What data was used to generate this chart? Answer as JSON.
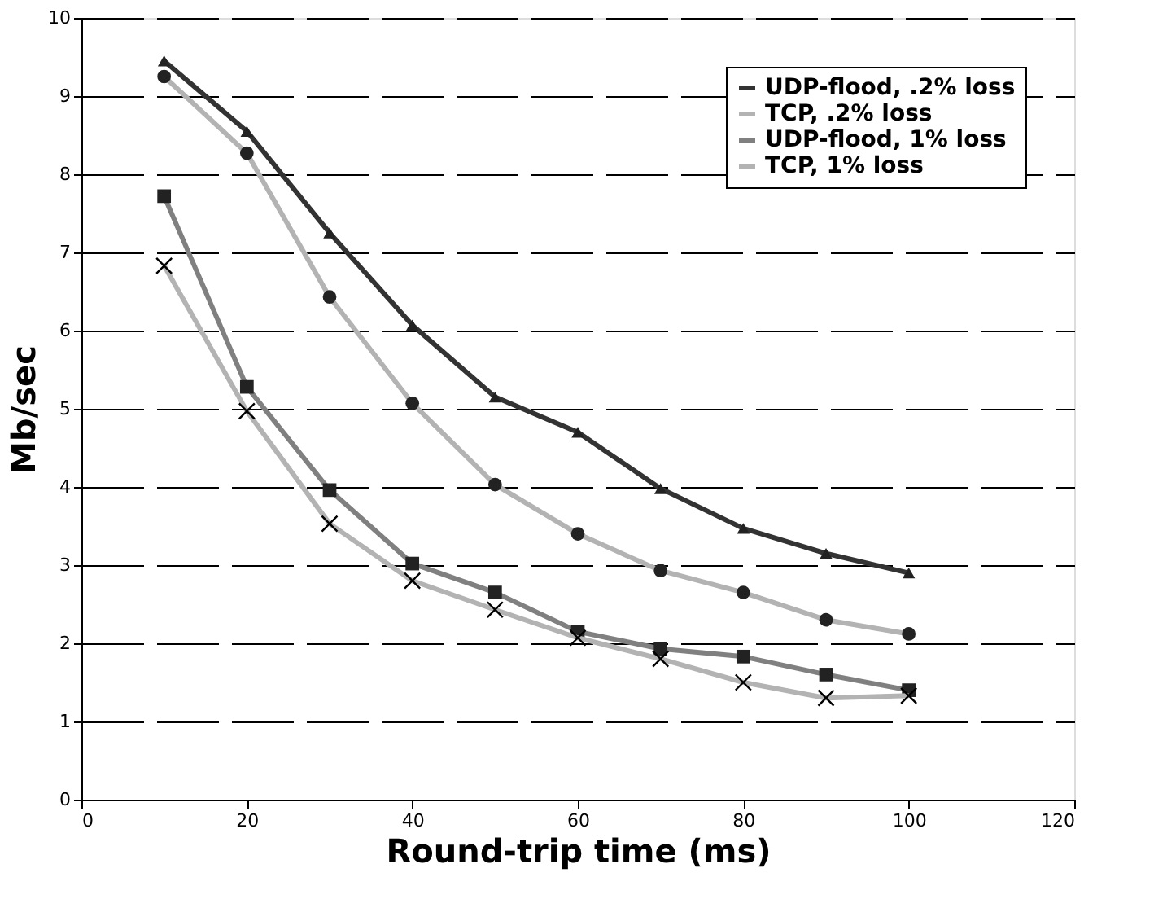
{
  "chart_data": {
    "type": "line",
    "xlabel": "Round-trip time (ms)",
    "ylabel": "Mb/sec",
    "x": [
      10,
      20,
      30,
      40,
      50,
      60,
      70,
      80,
      90,
      100
    ],
    "series": [
      {
        "name": "UDP-flood, .2% loss",
        "color": "#333333",
        "marker": "triangle",
        "values": [
          9.45,
          8.55,
          7.25,
          6.07,
          5.15,
          4.7,
          3.98,
          3.47,
          3.15,
          2.9
        ]
      },
      {
        "name": "TCP, .2% loss",
        "color": "#b3b3b3",
        "marker": "circle",
        "values": [
          9.25,
          8.27,
          6.43,
          5.07,
          4.03,
          3.4,
          2.93,
          2.65,
          2.3,
          2.12
        ]
      },
      {
        "name": "UDP-flood, 1% loss",
        "color": "#808080",
        "marker": "square",
        "values": [
          7.72,
          5.28,
          3.96,
          3.02,
          2.65,
          2.15,
          1.93,
          1.83,
          1.6,
          1.4
        ]
      },
      {
        "name": "TCP, 1% loss",
        "color": "#b3b3b3",
        "marker": "cross",
        "values": [
          6.83,
          4.97,
          3.53,
          2.8,
          2.43,
          2.07,
          1.8,
          1.5,
          1.3,
          1.33
        ]
      }
    ],
    "xlim": [
      0,
      120
    ],
    "xticks": [
      0,
      20,
      40,
      60,
      80,
      100,
      120
    ],
    "ylim": [
      0,
      10
    ],
    "yticks": [
      0,
      1,
      2,
      3,
      4,
      5,
      6,
      7,
      8,
      9,
      10
    ],
    "grid": "y",
    "legend": "top right",
    "line_style": "solid"
  }
}
